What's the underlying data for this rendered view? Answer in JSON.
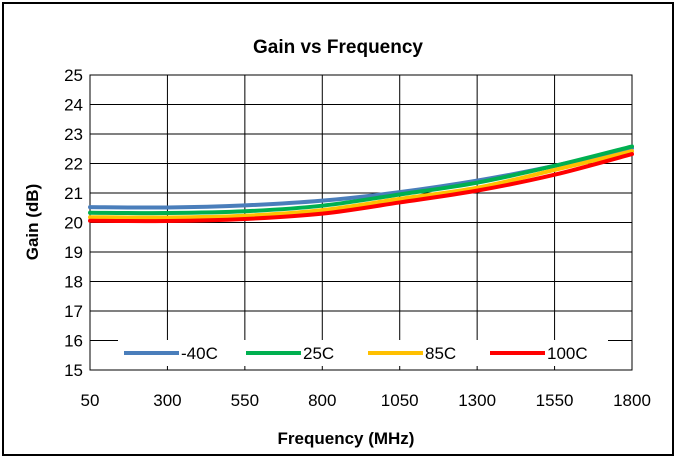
{
  "chart_data": {
    "type": "line",
    "title": "Gain vs Frequency",
    "xlabel": "Frequency (MHz)",
    "ylabel": "Gain (dB)",
    "xlim": [
      50,
      1800
    ],
    "ylim": [
      15,
      25
    ],
    "x_ticks": [
      50,
      300,
      550,
      800,
      1050,
      1300,
      1550,
      1800
    ],
    "y_ticks": [
      15,
      16,
      17,
      18,
      19,
      20,
      21,
      22,
      23,
      24,
      25
    ],
    "grid": true,
    "legend_position": "bottom inside",
    "series": [
      {
        "name": "-40C",
        "color": "#4a7ebb",
        "x": [
          50,
          300,
          550,
          800,
          1050,
          1300,
          1550,
          1800
        ],
        "y": [
          20.52,
          20.51,
          20.58,
          20.74,
          21.03,
          21.42,
          21.92,
          22.52
        ]
      },
      {
        "name": "25C",
        "color": "#00b050",
        "x": [
          50,
          300,
          550,
          800,
          1050,
          1300,
          1550,
          1800
        ],
        "y": [
          20.33,
          20.32,
          20.38,
          20.57,
          20.95,
          21.35,
          21.92,
          22.58
        ]
      },
      {
        "name": "85C",
        "color": "#ffc000",
        "x": [
          50,
          300,
          550,
          800,
          1050,
          1300,
          1550,
          1800
        ],
        "y": [
          20.18,
          20.17,
          20.23,
          20.42,
          20.8,
          21.18,
          21.78,
          22.42
        ]
      },
      {
        "name": "100C",
        "color": "#ff0000",
        "x": [
          50,
          300,
          550,
          800,
          1050,
          1300,
          1550,
          1800
        ],
        "y": [
          20.06,
          20.05,
          20.12,
          20.3,
          20.68,
          21.08,
          21.62,
          22.32
        ]
      }
    ]
  }
}
